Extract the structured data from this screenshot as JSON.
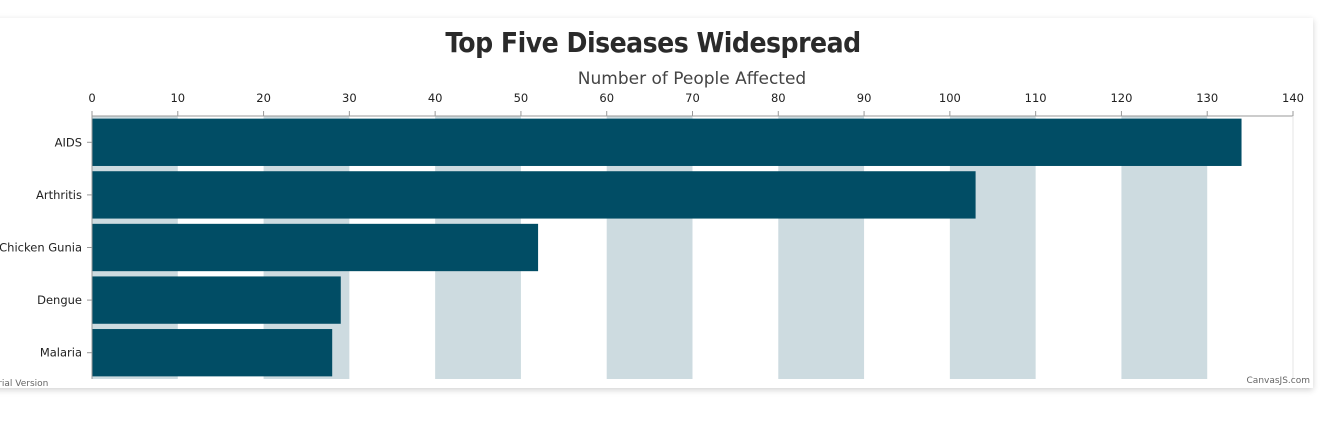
{
  "chart_data": {
    "type": "bar",
    "orientation": "horizontal",
    "title": "Top Five Diseases Widespread",
    "axis_title": "Number of People Affected",
    "axis_position": "top",
    "categories": [
      "AIDS",
      "Arthritis",
      "Chicken Gunia",
      "Dengue",
      "Malaria"
    ],
    "values": [
      134,
      103,
      52,
      29,
      28
    ],
    "xlim": [
      0,
      140
    ],
    "ticks": [
      0,
      10,
      20,
      30,
      40,
      50,
      60,
      70,
      80,
      90,
      100,
      110,
      120,
      130,
      140
    ],
    "grid": "alternating bands",
    "colors": {
      "bar": "#014D65",
      "band": "#CDDBE0",
      "axis": "#999999"
    }
  },
  "credits": {
    "left": "Trial Version",
    "right": "CanvasJS.com"
  }
}
